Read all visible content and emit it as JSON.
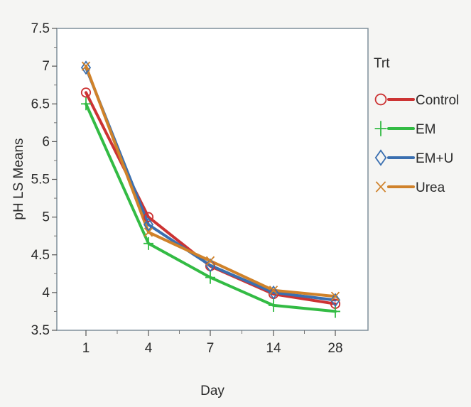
{
  "chart_data": {
    "type": "line",
    "title": "",
    "xlabel": "Day",
    "ylabel": "pH LS Means",
    "categories": [
      "1",
      "4",
      "7",
      "14",
      "28"
    ],
    "ylim": [
      3.5,
      7.5
    ],
    "yticks": [
      "3.5",
      "4",
      "4.5",
      "5",
      "5.5",
      "6",
      "6.5",
      "7",
      "7.5"
    ],
    "grid": false,
    "legend": {
      "title": "Trt",
      "position": "right"
    },
    "series": [
      {
        "name": "Control",
        "marker": "circle",
        "color": "#cc3333",
        "values": [
          6.65,
          5.0,
          4.35,
          3.98,
          3.85
        ]
      },
      {
        "name": "EM",
        "marker": "plus",
        "color": "#33bb44",
        "values": [
          6.5,
          4.65,
          4.2,
          3.83,
          3.75
        ]
      },
      {
        "name": "EM+U",
        "marker": "diamond",
        "color": "#3a6fb0",
        "values": [
          6.98,
          4.9,
          4.36,
          4.0,
          3.9
        ]
      },
      {
        "name": "Urea",
        "marker": "x",
        "color": "#d0822a",
        "values": [
          7.0,
          4.8,
          4.42,
          4.03,
          3.95
        ]
      }
    ]
  }
}
